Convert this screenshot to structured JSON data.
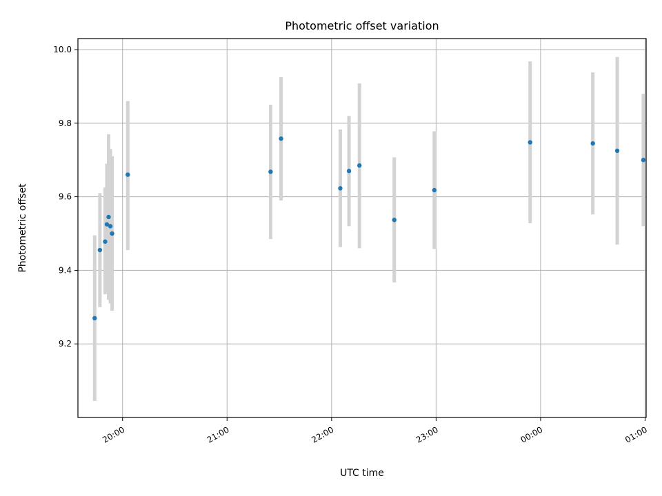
{
  "chart_data": {
    "type": "scatter",
    "title": "Photometric offset variation",
    "xlabel": "UTC time",
    "ylabel": "Photometric offset",
    "xlim": [
      "19:49",
      "02:20"
    ],
    "ylim": [
      9.0,
      10.03
    ],
    "x_unit": "UTC time (HH:MM)",
    "grid": true,
    "x_ticks": [
      "20:00",
      "21:00",
      "22:00",
      "23:00",
      "00:00",
      "01:00"
    ],
    "y_ticks": [
      9.2,
      9.4,
      9.6,
      9.8,
      10.0
    ],
    "y_tick_labels": [
      "9.2",
      "9.4",
      "9.6",
      "9.8",
      "10.0"
    ],
    "colors": {
      "point": "#1f77b4",
      "errorbar": "#d3d3d3",
      "grid": "#b0b0b0"
    },
    "points": [
      {
        "t": "19:44",
        "y": 9.27,
        "low": 9.045,
        "high": 9.495
      },
      {
        "t": "19:47",
        "y": 9.455,
        "low": 9.3,
        "high": 9.61
      },
      {
        "t": "19:50",
        "y": 9.478,
        "low": 9.335,
        "high": 9.625
      },
      {
        "t": "19:51",
        "y": 9.525,
        "low": 9.36,
        "high": 9.69
      },
      {
        "t": "19:52",
        "y": 9.545,
        "low": 9.32,
        "high": 9.77
      },
      {
        "t": "19:53",
        "y": 9.52,
        "low": 9.31,
        "high": 9.73
      },
      {
        "t": "19:54",
        "y": 9.5,
        "low": 9.29,
        "high": 9.71
      },
      {
        "t": "20:03",
        "y": 9.66,
        "low": 9.455,
        "high": 9.86
      },
      {
        "t": "21:25",
        "y": 9.668,
        "low": 9.485,
        "high": 9.85
      },
      {
        "t": "21:31",
        "y": 9.758,
        "low": 9.59,
        "high": 9.925
      },
      {
        "t": "22:05",
        "y": 9.623,
        "low": 9.463,
        "high": 9.783
      },
      {
        "t": "22:10",
        "y": 9.67,
        "low": 9.52,
        "high": 9.82
      },
      {
        "t": "22:16",
        "y": 9.685,
        "low": 9.46,
        "high": 9.908
      },
      {
        "t": "22:36",
        "y": 9.537,
        "low": 9.367,
        "high": 9.707
      },
      {
        "t": "22:59",
        "y": 9.618,
        "low": 9.458,
        "high": 9.778
      },
      {
        "t": "23:54",
        "y": 9.748,
        "low": 9.528,
        "high": 9.968
      },
      {
        "t": "00:30",
        "y": 9.745,
        "low": 9.552,
        "high": 9.938
      },
      {
        "t": "00:44",
        "y": 9.725,
        "low": 9.47,
        "high": 9.98
      },
      {
        "t": "00:59",
        "y": 9.7,
        "low": 9.52,
        "high": 9.88
      }
    ]
  }
}
